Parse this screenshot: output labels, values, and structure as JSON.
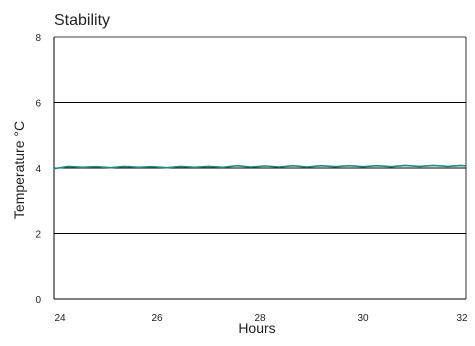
{
  "chart_data": {
    "type": "line",
    "title": "Stability",
    "xlabel": "Hours",
    "ylabel": "Temperature °C",
    "xlim": [
      24,
      32
    ],
    "ylim": [
      0,
      8
    ],
    "xticks": [
      24,
      26,
      28,
      30,
      32
    ],
    "yticks": [
      0,
      2,
      4,
      6,
      8
    ],
    "grid": "horizontal",
    "legend": "none",
    "series": [
      {
        "color": "#1a8c80",
        "x": [
          24.0,
          24.28,
          24.55,
          24.82,
          25.1,
          25.37,
          25.64,
          25.91,
          26.19,
          26.46,
          26.73,
          27.0,
          27.28,
          27.55,
          27.82,
          28.1,
          28.37,
          28.64,
          28.91,
          29.19,
          29.46,
          29.73,
          30.0,
          30.28,
          30.55,
          30.82,
          31.1,
          31.37,
          31.64,
          31.91,
          32.0
        ],
        "y": [
          3.98,
          4.05,
          4.02,
          4.04,
          4.01,
          4.05,
          4.02,
          4.04,
          4.01,
          4.05,
          4.02,
          4.05,
          4.02,
          4.07,
          4.03,
          4.06,
          4.03,
          4.07,
          4.03,
          4.07,
          4.04,
          4.07,
          4.04,
          4.07,
          4.04,
          4.08,
          4.05,
          4.08,
          4.05,
          4.08,
          4.06
        ]
      }
    ]
  }
}
